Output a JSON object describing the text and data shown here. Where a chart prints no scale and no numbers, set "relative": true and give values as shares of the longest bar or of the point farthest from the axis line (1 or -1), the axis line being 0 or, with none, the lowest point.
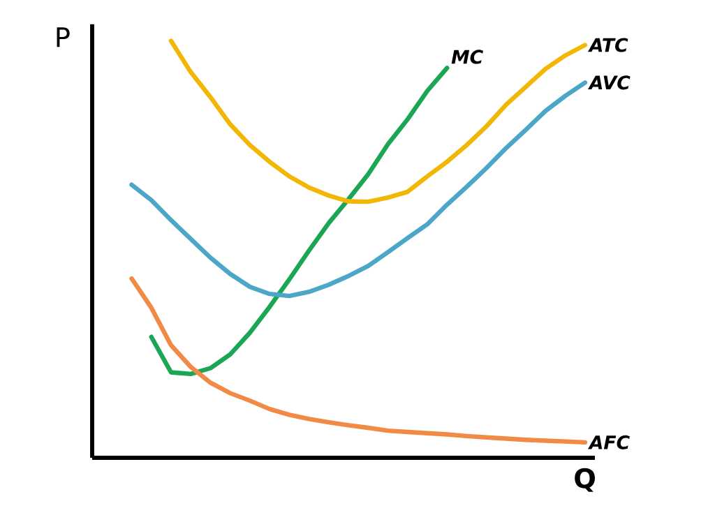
{
  "chart_data": {
    "type": "line",
    "relative": true,
    "xlabel": "Q",
    "ylabel": "P",
    "tick_labels": false,
    "marker": "none",
    "line_style": "solid",
    "categories": [
      null,
      null,
      null,
      null,
      null,
      null,
      null,
      null,
      null,
      null,
      null,
      null,
      null,
      null,
      null,
      null,
      null,
      null,
      null,
      null,
      null,
      null,
      null,
      null,
      null,
      null
    ],
    "series": [
      {
        "name": "MC",
        "color": "#1aa653",
        "values": [
          null,
          null,
          null,
          0.29,
          0.205,
          0.201,
          0.215,
          0.248,
          0.3,
          0.362,
          0.428,
          0.497,
          0.563,
          0.62,
          0.68,
          0.752,
          0.812,
          0.88,
          0.935,
          null,
          null,
          null,
          null,
          null,
          null,
          null
        ]
      },
      {
        "name": "ATC",
        "color": "#f2b705",
        "values": [
          null,
          null,
          null,
          null,
          1.0,
          0.925,
          0.865,
          0.8,
          0.75,
          0.71,
          0.675,
          0.648,
          0.629,
          0.615,
          0.614,
          0.624,
          0.638,
          0.675,
          0.71,
          0.75,
          0.795,
          0.847,
          0.89,
          0.933,
          0.965,
          0.99
        ]
      },
      {
        "name": "AVC",
        "color": "#4ba6c8",
        "values": [
          null,
          null,
          0.655,
          0.618,
          0.57,
          0.525,
          0.48,
          0.441,
          0.41,
          0.393,
          0.388,
          0.398,
          0.415,
          0.436,
          0.46,
          0.493,
          0.527,
          0.56,
          0.607,
          0.65,
          0.695,
          0.743,
          0.787,
          0.832,
          0.868,
          0.9
        ]
      },
      {
        "name": "AFC",
        "color": "#f08a45",
        "values": [
          null,
          null,
          0.43,
          0.36,
          0.27,
          0.218,
          0.18,
          0.155,
          0.137,
          0.117,
          0.103,
          0.093,
          0.085,
          0.078,
          0.072,
          0.065,
          0.062,
          0.059,
          0.056,
          0.052,
          0.049,
          0.046,
          0.043,
          0.041,
          0.039,
          0.037
        ]
      }
    ]
  }
}
